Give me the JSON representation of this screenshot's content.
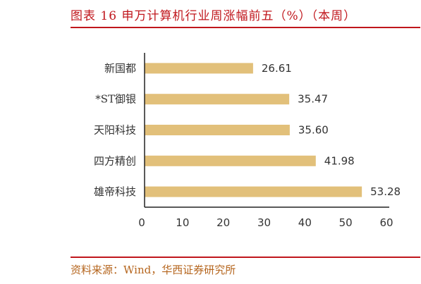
{
  "header": {
    "title": "图表 16 申万计算机行业周涨幅前五（%）（本周）"
  },
  "footer": {
    "source": "资料来源：Wind，华西证券研究所"
  },
  "colors": {
    "accent": "#c0161c",
    "bar": "#e2c07a",
    "source_text": "#b5651d"
  },
  "chart_data": {
    "type": "bar",
    "orientation": "horizontal",
    "categories": [
      "新国都",
      "*ST御银",
      "天阳科技",
      "四方精创",
      "雄帝科技"
    ],
    "values": [
      26.61,
      35.47,
      35.6,
      41.98,
      53.28
    ],
    "value_labels": [
      "26.61",
      "35.47",
      "35.60",
      "41.98",
      "53.28"
    ],
    "xlim": [
      0,
      60
    ],
    "xticks": [
      0,
      10,
      20,
      30,
      40,
      50,
      60
    ],
    "grid": false,
    "legend": "none"
  }
}
